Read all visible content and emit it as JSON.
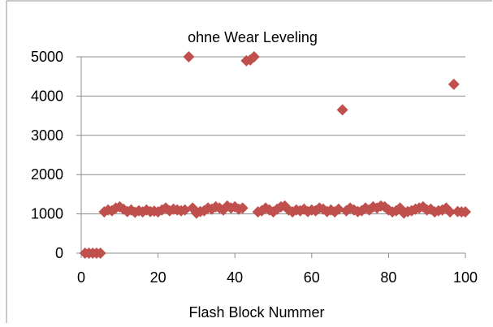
{
  "chart_data": {
    "type": "scatter",
    "title": "ohne Wear Leveling",
    "xlabel": "Flash Block Nummer",
    "ylabel": "",
    "xlim": [
      0,
      100
    ],
    "ylim": [
      0,
      5000
    ],
    "x_ticks": [
      0,
      20,
      40,
      60,
      80,
      100
    ],
    "y_ticks": [
      0,
      1000,
      2000,
      3000,
      4000,
      5000
    ],
    "grid": "horizontal",
    "marker": "diamond",
    "marker_color": "#C0504D",
    "series": [
      {
        "name": "",
        "points": [
          [
            1,
            0
          ],
          [
            2,
            0
          ],
          [
            3,
            0
          ],
          [
            4,
            0
          ],
          [
            5,
            0
          ],
          [
            6,
            1050
          ],
          [
            7,
            1100
          ],
          [
            8,
            1080
          ],
          [
            9,
            1150
          ],
          [
            10,
            1180
          ],
          [
            11,
            1120
          ],
          [
            12,
            1060
          ],
          [
            13,
            1100
          ],
          [
            14,
            1040
          ],
          [
            15,
            1080
          ],
          [
            16,
            1050
          ],
          [
            17,
            1100
          ],
          [
            18,
            1060
          ],
          [
            19,
            1070
          ],
          [
            20,
            1050
          ],
          [
            21,
            1100
          ],
          [
            22,
            1150
          ],
          [
            23,
            1080
          ],
          [
            24,
            1120
          ],
          [
            25,
            1100
          ],
          [
            26,
            1080
          ],
          [
            27,
            1100
          ],
          [
            28,
            5000
          ],
          [
            29,
            1150
          ],
          [
            30,
            1020
          ],
          [
            31,
            1060
          ],
          [
            32,
            1080
          ],
          [
            33,
            1150
          ],
          [
            34,
            1120
          ],
          [
            35,
            1180
          ],
          [
            36,
            1150
          ],
          [
            37,
            1100
          ],
          [
            38,
            1200
          ],
          [
            39,
            1150
          ],
          [
            40,
            1180
          ],
          [
            41,
            1120
          ],
          [
            42,
            1150
          ],
          [
            43,
            4900
          ],
          [
            44,
            4920
          ],
          [
            45,
            5000
          ],
          [
            46,
            1050
          ],
          [
            47,
            1080
          ],
          [
            48,
            1150
          ],
          [
            49,
            1100
          ],
          [
            50,
            1050
          ],
          [
            51,
            1120
          ],
          [
            52,
            1180
          ],
          [
            53,
            1200
          ],
          [
            54,
            1100
          ],
          [
            55,
            1050
          ],
          [
            56,
            1100
          ],
          [
            57,
            1080
          ],
          [
            58,
            1120
          ],
          [
            59,
            1060
          ],
          [
            60,
            1100
          ],
          [
            61,
            1080
          ],
          [
            62,
            1150
          ],
          [
            63,
            1120
          ],
          [
            64,
            1060
          ],
          [
            65,
            1100
          ],
          [
            66,
            1050
          ],
          [
            67,
            1120
          ],
          [
            68,
            3650
          ],
          [
            69,
            1080
          ],
          [
            70,
            1150
          ],
          [
            71,
            1100
          ],
          [
            72,
            1060
          ],
          [
            73,
            1080
          ],
          [
            74,
            1150
          ],
          [
            75,
            1100
          ],
          [
            76,
            1180
          ],
          [
            77,
            1150
          ],
          [
            78,
            1200
          ],
          [
            79,
            1180
          ],
          [
            80,
            1100
          ],
          [
            81,
            1050
          ],
          [
            82,
            1080
          ],
          [
            83,
            1150
          ],
          [
            84,
            1020
          ],
          [
            85,
            1060
          ],
          [
            86,
            1080
          ],
          [
            87,
            1120
          ],
          [
            88,
            1150
          ],
          [
            89,
            1180
          ],
          [
            90,
            1100
          ],
          [
            91,
            1120
          ],
          [
            92,
            1050
          ],
          [
            93,
            1080
          ],
          [
            94,
            1100
          ],
          [
            95,
            1150
          ],
          [
            96,
            1050
          ],
          [
            97,
            4300
          ],
          [
            98,
            1060
          ],
          [
            99,
            1050
          ],
          [
            100,
            1050
          ]
        ]
      }
    ]
  }
}
